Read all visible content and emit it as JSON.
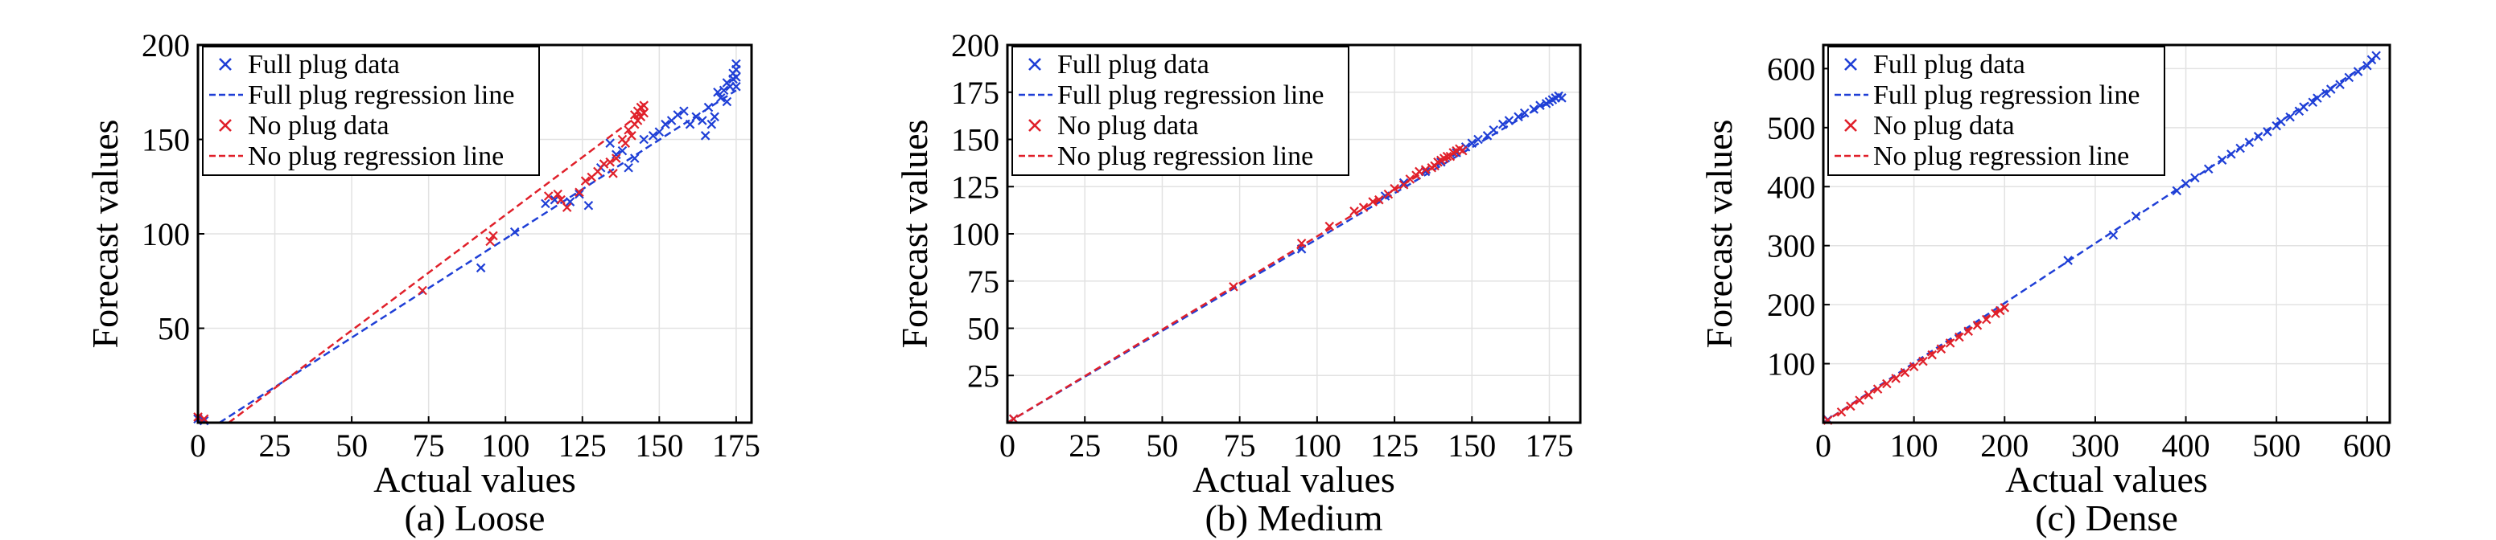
{
  "chart_data": [
    {
      "type": "scatter",
      "caption": "(a) Loose",
      "xlabel": "Actual values",
      "ylabel": "Forecast values",
      "xlim": [
        0,
        180
      ],
      "ylim": [
        0,
        200
      ],
      "xticks": [
        0,
        25,
        50,
        75,
        100,
        125,
        150,
        175
      ],
      "yticks": [
        50,
        100,
        150,
        200
      ],
      "grid": true,
      "legend_position": "top-left",
      "series": [
        {
          "name": "Full plug data",
          "kind": "scatter",
          "color": "#1f3fd6",
          "points": [
            [
              0,
              2
            ],
            [
              2,
              1
            ],
            [
              92,
              82
            ],
            [
              103,
              101
            ],
            [
              113,
              116
            ],
            [
              116,
              118
            ],
            [
              121,
              117
            ],
            [
              124,
              121
            ],
            [
              127,
              115
            ],
            [
              131,
              135
            ],
            [
              134,
              148
            ],
            [
              136,
              142
            ],
            [
              138,
              144
            ],
            [
              140,
              135
            ],
            [
              142,
              140
            ],
            [
              145,
              150
            ],
            [
              148,
              152
            ],
            [
              150,
              154
            ],
            [
              152,
              158
            ],
            [
              154,
              160
            ],
            [
              156,
              163
            ],
            [
              158,
              165
            ],
            [
              160,
              158
            ],
            [
              162,
              162
            ],
            [
              164,
              160
            ],
            [
              165,
              152
            ],
            [
              166,
              167
            ],
            [
              167,
              158
            ],
            [
              168,
              162
            ],
            [
              169,
              175
            ],
            [
              170,
              172
            ],
            [
              171,
              176
            ],
            [
              172,
              170
            ],
            [
              172,
              180
            ],
            [
              173,
              178
            ],
            [
              174,
              182
            ],
            [
              174,
              185
            ],
            [
              175,
              178
            ],
            [
              175,
              183
            ],
            [
              175,
              187
            ],
            [
              175,
              190
            ]
          ]
        },
        {
          "name": "Full plug regression line",
          "kind": "line",
          "color": "#1f3fd6",
          "points": [
            [
              7,
              0
            ],
            [
              175,
              176
            ]
          ]
        },
        {
          "name": "No plug data",
          "kind": "scatter",
          "color": "#e0202a",
          "points": [
            [
              0,
              3
            ],
            [
              2,
              2
            ],
            [
              73,
              70
            ],
            [
              95,
              96
            ],
            [
              96,
              99
            ],
            [
              114,
              120
            ],
            [
              117,
              121
            ],
            [
              118,
              118
            ],
            [
              120,
              114
            ],
            [
              124,
              122
            ],
            [
              126,
              128
            ],
            [
              128,
              130
            ],
            [
              130,
              133
            ],
            [
              132,
              137
            ],
            [
              134,
              138
            ],
            [
              135,
              132
            ],
            [
              136,
              140
            ],
            [
              138,
              150
            ],
            [
              139,
              148
            ],
            [
              140,
              155
            ],
            [
              141,
              152
            ],
            [
              142,
              158
            ],
            [
              142,
              163
            ],
            [
              143,
              160
            ],
            [
              143,
              165
            ],
            [
              144,
              162
            ],
            [
              144,
              167
            ],
            [
              145,
              164
            ],
            [
              145,
              168
            ]
          ]
        },
        {
          "name": "No plug regression line",
          "kind": "line",
          "color": "#e0202a",
          "points": [
            [
              10,
              0
            ],
            [
              145,
              165
            ]
          ]
        }
      ]
    },
    {
      "type": "scatter",
      "caption": "(b) Medium",
      "xlabel": "Actual values",
      "ylabel": "Forecast values",
      "xlim": [
        0,
        185
      ],
      "ylim": [
        0,
        200
      ],
      "xticks": [
        0,
        25,
        50,
        75,
        100,
        125,
        150,
        175
      ],
      "yticks": [
        25,
        50,
        75,
        100,
        125,
        150,
        175,
        200
      ],
      "grid": true,
      "legend_position": "top-left",
      "series": [
        {
          "name": "Full plug data",
          "kind": "scatter",
          "color": "#1f3fd6",
          "points": [
            [
              2,
              2
            ],
            [
              95,
              92
            ],
            [
              122,
              120
            ],
            [
              128,
              127
            ],
            [
              135,
              133
            ],
            [
              140,
              138
            ],
            [
              145,
              143
            ],
            [
              148,
              146
            ],
            [
              150,
              148
            ],
            [
              152,
              150
            ],
            [
              155,
              152
            ],
            [
              157,
              155
            ],
            [
              160,
              158
            ],
            [
              162,
              160
            ],
            [
              165,
              162
            ],
            [
              167,
              164
            ],
            [
              170,
              166
            ],
            [
              172,
              168
            ],
            [
              174,
              169
            ],
            [
              175,
              170
            ],
            [
              176,
              171
            ],
            [
              177,
              172
            ],
            [
              178,
              173
            ],
            [
              179,
              172
            ]
          ]
        },
        {
          "name": "Full plug regression line",
          "kind": "line",
          "color": "#1f3fd6",
          "points": [
            [
              0,
              0
            ],
            [
              179,
              174
            ]
          ]
        },
        {
          "name": "No plug data",
          "kind": "scatter",
          "color": "#e0202a",
          "points": [
            [
              2,
              2
            ],
            [
              73,
              72
            ],
            [
              95,
              95
            ],
            [
              104,
              104
            ],
            [
              112,
              112
            ],
            [
              115,
              114
            ],
            [
              118,
              117
            ],
            [
              120,
              118
            ],
            [
              123,
              121
            ],
            [
              125,
              124
            ],
            [
              128,
              126
            ],
            [
              130,
              129
            ],
            [
              132,
              131
            ],
            [
              133,
              133
            ],
            [
              135,
              134
            ],
            [
              137,
              135
            ],
            [
              138,
              136
            ],
            [
              139,
              138
            ],
            [
              140,
              139
            ],
            [
              141,
              140
            ],
            [
              142,
              141
            ],
            [
              143,
              141
            ],
            [
              144,
              143
            ],
            [
              145,
              144
            ],
            [
              146,
              145
            ],
            [
              147,
              144
            ]
          ]
        },
        {
          "name": "No plug regression line",
          "kind": "line",
          "color": "#e0202a",
          "points": [
            [
              0,
              0
            ],
            [
              147,
              145
            ]
          ]
        }
      ]
    },
    {
      "type": "scatter",
      "caption": "(c) Dense",
      "xlabel": "Actual values",
      "ylabel": "Forecast values",
      "xlim": [
        0,
        625
      ],
      "ylim": [
        0,
        640
      ],
      "xticks": [
        0,
        100,
        200,
        300,
        400,
        500,
        600
      ],
      "yticks": [
        100,
        200,
        300,
        400,
        500,
        600
      ],
      "grid": true,
      "legend_position": "top-left",
      "series": [
        {
          "name": "Full plug data",
          "kind": "scatter",
          "color": "#1f3fd6",
          "points": [
            [
              5,
              5
            ],
            [
              270,
              275
            ],
            [
              320,
              318
            ],
            [
              345,
              350
            ],
            [
              390,
              393
            ],
            [
              400,
              405
            ],
            [
              410,
              415
            ],
            [
              425,
              430
            ],
            [
              440,
              445
            ],
            [
              450,
              455
            ],
            [
              460,
              465
            ],
            [
              470,
              475
            ],
            [
              480,
              485
            ],
            [
              490,
              493
            ],
            [
              500,
              503
            ],
            [
              505,
              510
            ],
            [
              515,
              518
            ],
            [
              525,
              528
            ],
            [
              530,
              535
            ],
            [
              540,
              543
            ],
            [
              545,
              550
            ],
            [
              555,
              558
            ],
            [
              560,
              565
            ],
            [
              570,
              573
            ],
            [
              580,
              585
            ],
            [
              590,
              595
            ],
            [
              600,
              605
            ],
            [
              605,
              615
            ],
            [
              610,
              622
            ]
          ]
        },
        {
          "name": "Full plug regression line",
          "kind": "line",
          "color": "#1f3fd6",
          "points": [
            [
              0,
              0
            ],
            [
              612,
              620
            ]
          ]
        },
        {
          "name": "No plug data",
          "kind": "scatter",
          "color": "#e0202a",
          "points": [
            [
              5,
              4
            ],
            [
              20,
              18
            ],
            [
              30,
              28
            ],
            [
              40,
              38
            ],
            [
              50,
              47
            ],
            [
              60,
              57
            ],
            [
              70,
              66
            ],
            [
              80,
              75
            ],
            [
              90,
              85
            ],
            [
              100,
              95
            ],
            [
              110,
              104
            ],
            [
              120,
              115
            ],
            [
              130,
              125
            ],
            [
              140,
              135
            ],
            [
              150,
              145
            ],
            [
              160,
              155
            ],
            [
              170,
              165
            ],
            [
              180,
              175
            ],
            [
              190,
              185
            ],
            [
              195,
              190
            ],
            [
              200,
              195
            ]
          ]
        },
        {
          "name": "No plug regression line",
          "kind": "line",
          "color": "#e0202a",
          "points": [
            [
              0,
              0
            ],
            [
              200,
              198
            ]
          ]
        }
      ]
    }
  ]
}
